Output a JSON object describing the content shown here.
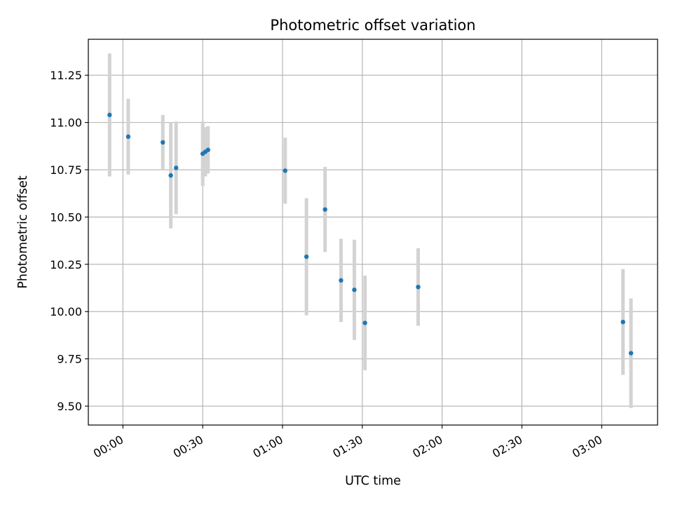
{
  "chart_data": {
    "type": "scatter",
    "title": "Photometric offset variation",
    "xlabel": "UTC time",
    "ylabel": "Photometric offset",
    "x_tick_labels": [
      "00:00",
      "00:30",
      "01:00",
      "01:30",
      "02:00",
      "02:30",
      "03:00"
    ],
    "y_tick_labels": [
      "9.50",
      "9.75",
      "10.00",
      "10.25",
      "10.50",
      "10.75",
      "11.00",
      "11.25"
    ],
    "xlim": [
      "23:47",
      "03:21"
    ],
    "ylim": [
      9.4,
      11.44
    ],
    "grid": true,
    "point_color": "#1f77b4",
    "errorbar_color": "#d3d3d3",
    "points": [
      {
        "x": "23:55",
        "y": 11.04,
        "yerr": 0.325
      },
      {
        "x": "00:02",
        "y": 10.925,
        "yerr": 0.2
      },
      {
        "x": "00:15",
        "y": 10.895,
        "yerr": 0.145
      },
      {
        "x": "00:18",
        "y": 10.72,
        "yerr": 0.28
      },
      {
        "x": "00:20",
        "y": 10.76,
        "yerr": 0.245
      },
      {
        "x": "00:30",
        "y": 10.835,
        "yerr": 0.17
      },
      {
        "x": "00:31",
        "y": 10.845,
        "yerr": 0.13
      },
      {
        "x": "00:32",
        "y": 10.855,
        "yerr": 0.125
      },
      {
        "x": "01:01",
        "y": 10.745,
        "yerr": 0.175
      },
      {
        "x": "01:09",
        "y": 10.29,
        "yerr": 0.31
      },
      {
        "x": "01:16",
        "y": 10.54,
        "yerr": 0.225
      },
      {
        "x": "01:22",
        "y": 10.165,
        "yerr": 0.22
      },
      {
        "x": "01:27",
        "y": 10.115,
        "yerr": 0.265
      },
      {
        "x": "01:31",
        "y": 9.94,
        "yerr": 0.25
      },
      {
        "x": "01:51",
        "y": 10.13,
        "yerr": 0.205
      },
      {
        "x": "03:08",
        "y": 9.945,
        "yerr": 0.28
      },
      {
        "x": "03:11",
        "y": 9.78,
        "yerr": 0.29
      }
    ]
  }
}
